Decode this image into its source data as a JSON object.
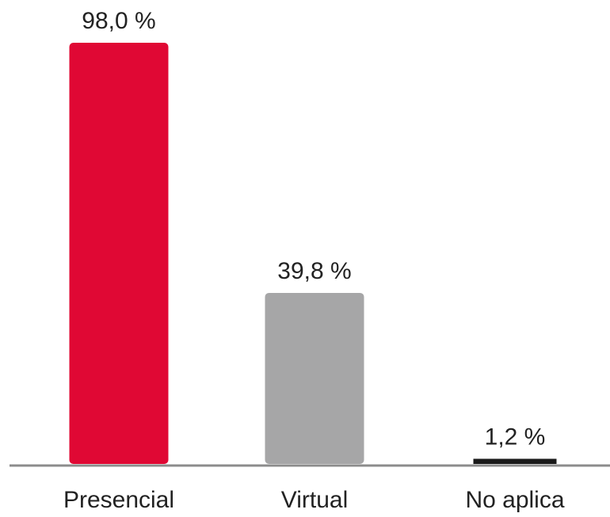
{
  "chart_data": {
    "type": "bar",
    "categories": [
      "Presencial",
      "Virtual",
      "No aplica"
    ],
    "values": [
      98.0,
      39.8,
      1.2
    ],
    "value_labels": [
      "98,0 %",
      "39,8 %",
      "1,2 %"
    ],
    "colors": [
      "#e00834",
      "#a6a6a7",
      "#1a1a1a"
    ],
    "axis_color": "#8c8c8c",
    "title": "",
    "xlabel": "",
    "ylabel": "",
    "ylim": [
      0,
      100
    ],
    "grid": false,
    "legend": "none"
  }
}
